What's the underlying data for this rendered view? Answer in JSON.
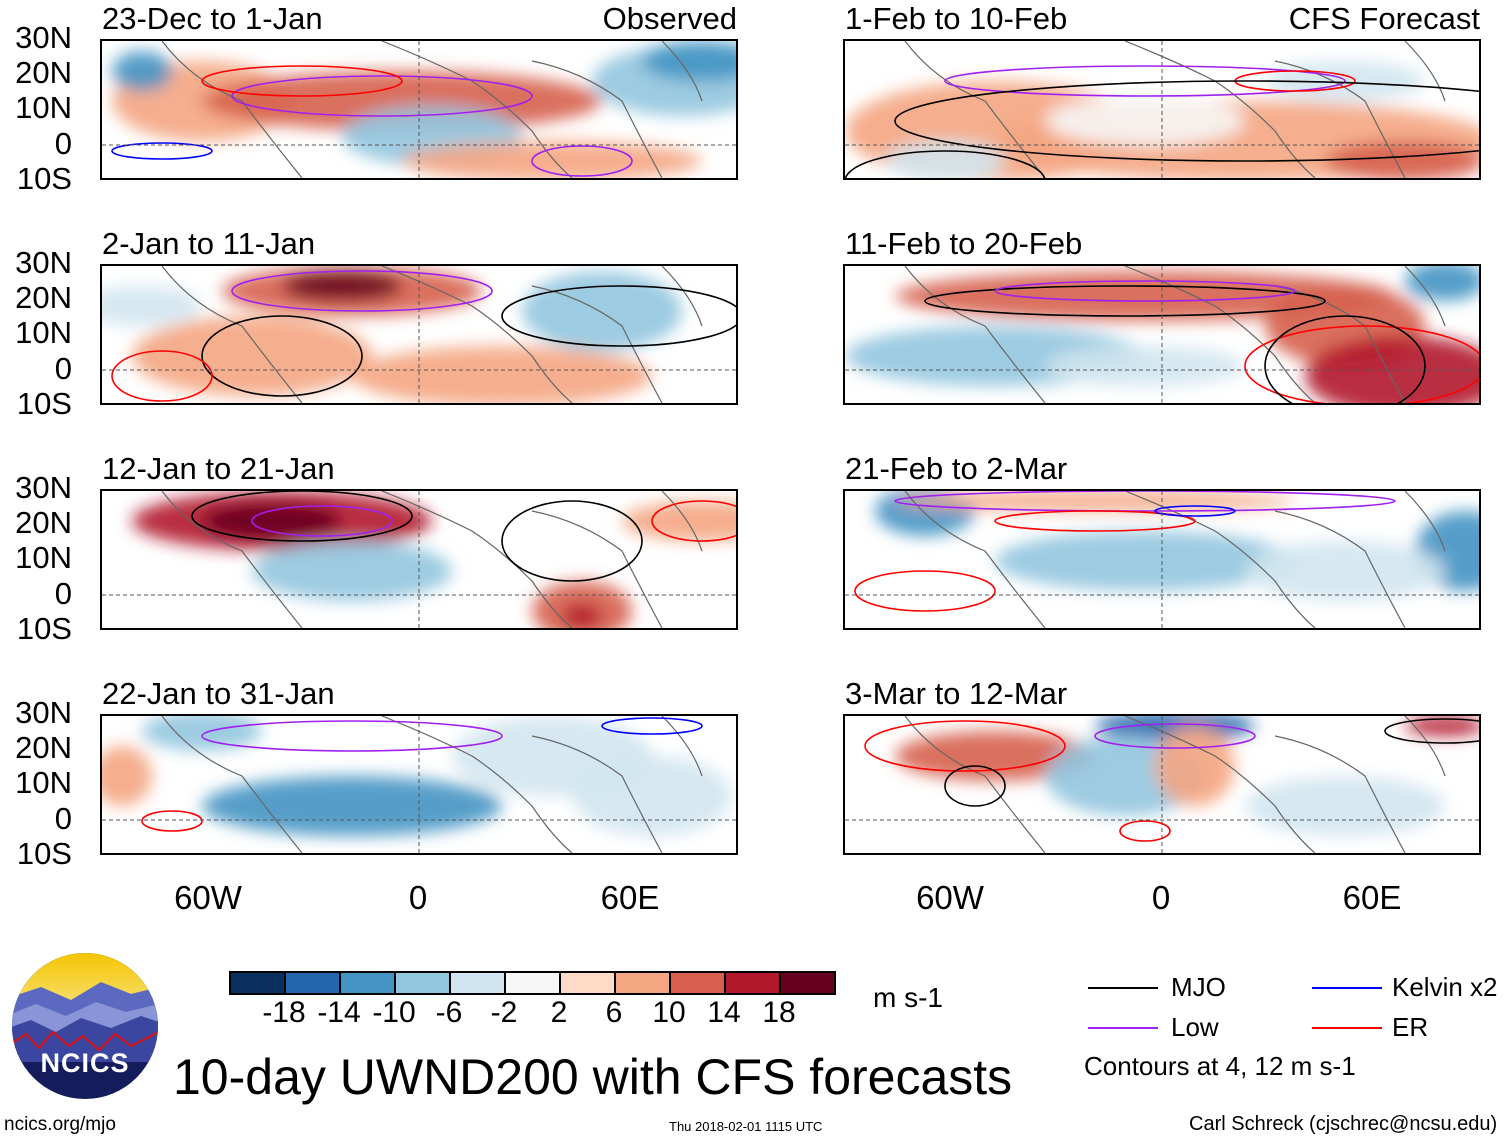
{
  "panels": [
    {
      "title": "23-Dec to 1-Jan",
      "label": "Observed"
    },
    {
      "title": "1-Feb to 10-Feb",
      "label": "CFS Forecast"
    },
    {
      "title": "2-Jan to 11-Jan"
    },
    {
      "title": "11-Feb to 20-Feb"
    },
    {
      "title": "12-Jan to 21-Jan"
    },
    {
      "title": "21-Feb to 2-Mar"
    },
    {
      "title": "22-Jan to 31-Jan"
    },
    {
      "title": "3-Mar to 12-Mar"
    }
  ],
  "lat_ticks": [
    "30N",
    "20N",
    "10N",
    "0",
    "10S"
  ],
  "lon_ticks": [
    "60W",
    "0",
    "60E"
  ],
  "colorbar": {
    "colors": [
      "#0a3060",
      "#2166ac",
      "#4393c3",
      "#92c5de",
      "#d1e5f0",
      "#f7f7f7",
      "#fddbc7",
      "#f4a582",
      "#d6604d",
      "#b2182b",
      "#67001f"
    ],
    "labels": [
      "-18",
      "-14",
      "-10",
      "-6",
      "-2",
      "2",
      "6",
      "10",
      "14",
      "18"
    ],
    "units": "m s-1"
  },
  "legend": {
    "items": [
      {
        "label": "MJO",
        "color": "#000000"
      },
      {
        "label": "Kelvin x2",
        "color": "#0000ff"
      },
      {
        "label": "Low",
        "color": "#a020f0"
      },
      {
        "label": "ER",
        "color": "#ff0000"
      }
    ],
    "contours_note": "Contours at 4, 12 m s-1"
  },
  "logo_text": "NCICS",
  "main_title": "10-day UWND200 with CFS forecasts",
  "footer": {
    "url": "ncics.org/mjo",
    "timestamp": "Thu 2018-02-01 1115 UTC",
    "credit": "Carl Schreck (cjschrec@ncsu.edu)"
  }
}
